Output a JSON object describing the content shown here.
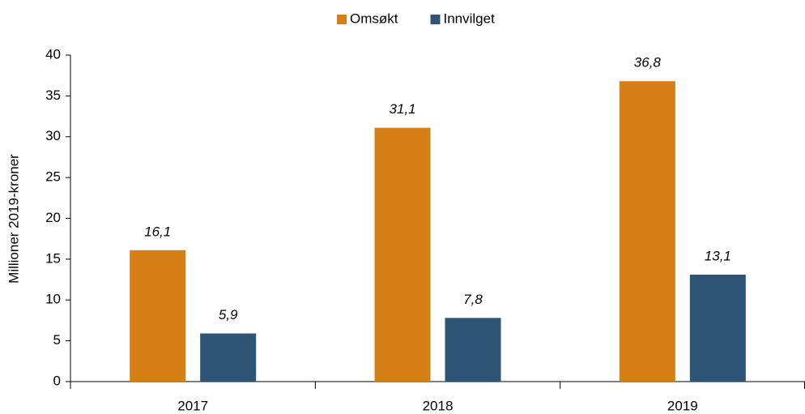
{
  "chart_data": {
    "type": "bar",
    "y_label": "Millioner 2019-kroner",
    "categories": [
      "2017",
      "2018",
      "2019"
    ],
    "series": [
      {
        "name": "Omsøkt",
        "color": "#d77f17",
        "values": [
          16.1,
          31.1,
          36.8
        ],
        "value_labels": [
          "16,1",
          "31,1",
          "36,8"
        ]
      },
      {
        "name": "Innvilget",
        "color": "#2f5576",
        "values": [
          5.9,
          7.8,
          13.1
        ],
        "value_labels": [
          "5,9",
          "7,8",
          "13,1"
        ]
      }
    ],
    "ylim": [
      0,
      40
    ],
    "yticks": [
      0,
      5,
      10,
      15,
      20,
      25,
      30,
      35,
      40
    ],
    "legend": "top"
  }
}
